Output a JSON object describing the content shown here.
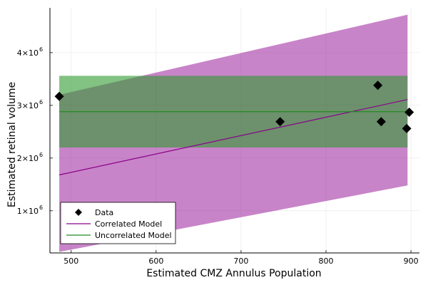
{
  "chart_data": {
    "type": "scatter",
    "xlabel": "Estimated CMZ Annulus Population",
    "ylabel": "Estimated retinal volume",
    "xlim": [
      475,
      910
    ],
    "ylim": [
      200000,
      4850000
    ],
    "grid": true,
    "legend_position": "bottom-left",
    "x_ticks": [
      {
        "value": 500,
        "label": "500"
      },
      {
        "value": 600,
        "label": "600"
      },
      {
        "value": 700,
        "label": "700"
      },
      {
        "value": 800,
        "label": "800"
      },
      {
        "value": 900,
        "label": "900"
      }
    ],
    "y_ticks": [
      {
        "value": 1000000,
        "base": "1×10",
        "exp": "6"
      },
      {
        "value": 2000000,
        "base": "2×10",
        "exp": "6"
      },
      {
        "value": 3000000,
        "base": "3×10",
        "exp": "6"
      },
      {
        "value": 4000000,
        "base": "4×10",
        "exp": "6"
      }
    ],
    "bands": [
      {
        "name": "Correlated Model band",
        "color": "#9b1f9b",
        "opacity": 0.55,
        "x": [
          486,
          896
        ],
        "lower": [
          220000,
          1480000
        ],
        "upper": [
          3200000,
          4720000
        ]
      },
      {
        "name": "Uncorrelated Model band",
        "color": "#2e9a2e",
        "opacity": 0.6,
        "x": [
          486,
          896
        ],
        "lower": [
          2200000,
          2200000
        ],
        "upper": [
          3560000,
          3560000
        ]
      }
    ],
    "series": [
      {
        "name": "Data",
        "type": "scatter",
        "marker": "diamond",
        "color": "#000000",
        "x": [
          486,
          746,
          861,
          865,
          895,
          898
        ],
        "y": [
          3170000,
          2690000,
          3380000,
          2690000,
          2560000,
          2870000
        ]
      },
      {
        "name": "Correlated Model",
        "type": "line",
        "color": "#8b008b",
        "x": [
          486,
          896
        ],
        "y": [
          1680000,
          3110000
        ]
      },
      {
        "name": "Uncorrelated Model",
        "type": "line",
        "color": "#228b22",
        "x": [
          486,
          896
        ],
        "y": [
          2880000,
          2880000
        ]
      }
    ]
  }
}
